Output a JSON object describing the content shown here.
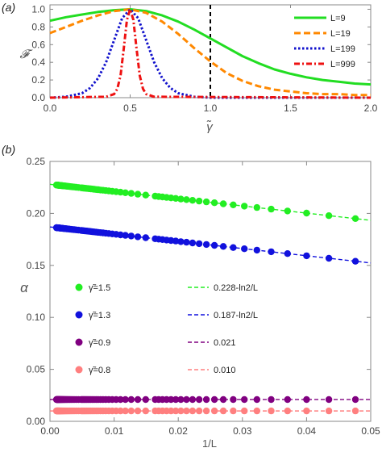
{
  "chart_data": [
    {
      "panel": "(a)",
      "type": "line",
      "ylabel": "𝓕",
      "xlabel": "γ̃",
      "xlim": [
        0,
        2
      ],
      "ylim": [
        0,
        1.05
      ],
      "xticks": [
        "0.0",
        "0.5",
        "1.0",
        "1.5",
        "2.0"
      ],
      "yticks": [
        "0.0",
        "0.2",
        "0.4",
        "0.6",
        "0.8",
        "1.0"
      ],
      "vline_x": 1.0,
      "legend_position": "top-right",
      "series": [
        {
          "name": "L=9",
          "color": "#22dd22",
          "style": "solid",
          "x": [
            0,
            0.1,
            0.2,
            0.3,
            0.4,
            0.5,
            0.6,
            0.7,
            0.8,
            0.9,
            1.0,
            1.1,
            1.2,
            1.3,
            1.4,
            1.5,
            1.6,
            1.7,
            1.8,
            1.9,
            2.0
          ],
          "y": [
            0.87,
            0.91,
            0.94,
            0.97,
            0.99,
            1.0,
            0.98,
            0.93,
            0.86,
            0.77,
            0.67,
            0.57,
            0.47,
            0.39,
            0.32,
            0.27,
            0.23,
            0.2,
            0.18,
            0.16,
            0.15
          ]
        },
        {
          "name": "L=19",
          "color": "#ff8800",
          "style": "dashed",
          "x": [
            0,
            0.1,
            0.2,
            0.3,
            0.4,
            0.5,
            0.6,
            0.7,
            0.8,
            0.9,
            1.0,
            1.1,
            1.2,
            1.3,
            1.4,
            1.5,
            1.6,
            1.7,
            1.8,
            1.9,
            2.0
          ],
          "y": [
            0.73,
            0.8,
            0.87,
            0.93,
            0.98,
            1.0,
            0.96,
            0.86,
            0.72,
            0.56,
            0.41,
            0.28,
            0.19,
            0.13,
            0.09,
            0.07,
            0.05,
            0.04,
            0.04,
            0.03,
            0.03
          ]
        },
        {
          "name": "L=199",
          "color": "#1111cc",
          "style": "dotted",
          "x": [
            0,
            0.1,
            0.2,
            0.25,
            0.3,
            0.35,
            0.4,
            0.45,
            0.5,
            0.55,
            0.6,
            0.65,
            0.7,
            0.75,
            0.8,
            0.9,
            1.0,
            2.0
          ],
          "y": [
            0.0,
            0.01,
            0.05,
            0.11,
            0.22,
            0.4,
            0.65,
            0.9,
            1.0,
            0.9,
            0.65,
            0.4,
            0.22,
            0.11,
            0.05,
            0.01,
            0.0,
            0.0
          ]
        },
        {
          "name": "L=999",
          "color": "#ee1111",
          "style": "dashdot",
          "x": [
            0,
            0.35,
            0.4,
            0.42,
            0.44,
            0.46,
            0.48,
            0.5,
            0.52,
            0.54,
            0.56,
            0.58,
            0.6,
            0.65,
            2.0
          ],
          "y": [
            0.0,
            0.01,
            0.04,
            0.1,
            0.25,
            0.55,
            0.88,
            1.0,
            0.88,
            0.55,
            0.25,
            0.1,
            0.04,
            0.01,
            0.0
          ]
        }
      ]
    },
    {
      "panel": "(b)",
      "type": "scatter",
      "ylabel": "α",
      "xlabel": "1/L",
      "xlim": [
        0,
        0.05
      ],
      "ylim": [
        0,
        0.25
      ],
      "xticks": [
        "0.00",
        "0.01",
        "0.02",
        "0.03",
        "0.04",
        "0.05"
      ],
      "yticks": [
        "0.00",
        "0.05",
        "0.10",
        "0.15",
        "0.20",
        "0.25"
      ],
      "legend_position": "center-left",
      "series": [
        {
          "name": "γ̃=1.5",
          "color": "#22ee22",
          "fit_label": "0.228-ln2/L",
          "intercept": 0.228,
          "slope": -0.693147,
          "x_max": 0.0476
        },
        {
          "name": "γ̃=1.3",
          "color": "#1111dd",
          "fit_label": "0.187-ln2/L",
          "intercept": 0.187,
          "slope": -0.693147,
          "x_max": 0.0476
        },
        {
          "name": "γ̃=0.9",
          "color": "#800080",
          "fit_label": "0.021",
          "intercept": 0.021,
          "slope": 0,
          "x_max": 0.0476
        },
        {
          "name": "γ̃=0.8",
          "color": "#ff7f7f",
          "fit_label": "0.010",
          "intercept": 0.01,
          "slope": 0,
          "x_max": 0.0476
        }
      ]
    }
  ]
}
